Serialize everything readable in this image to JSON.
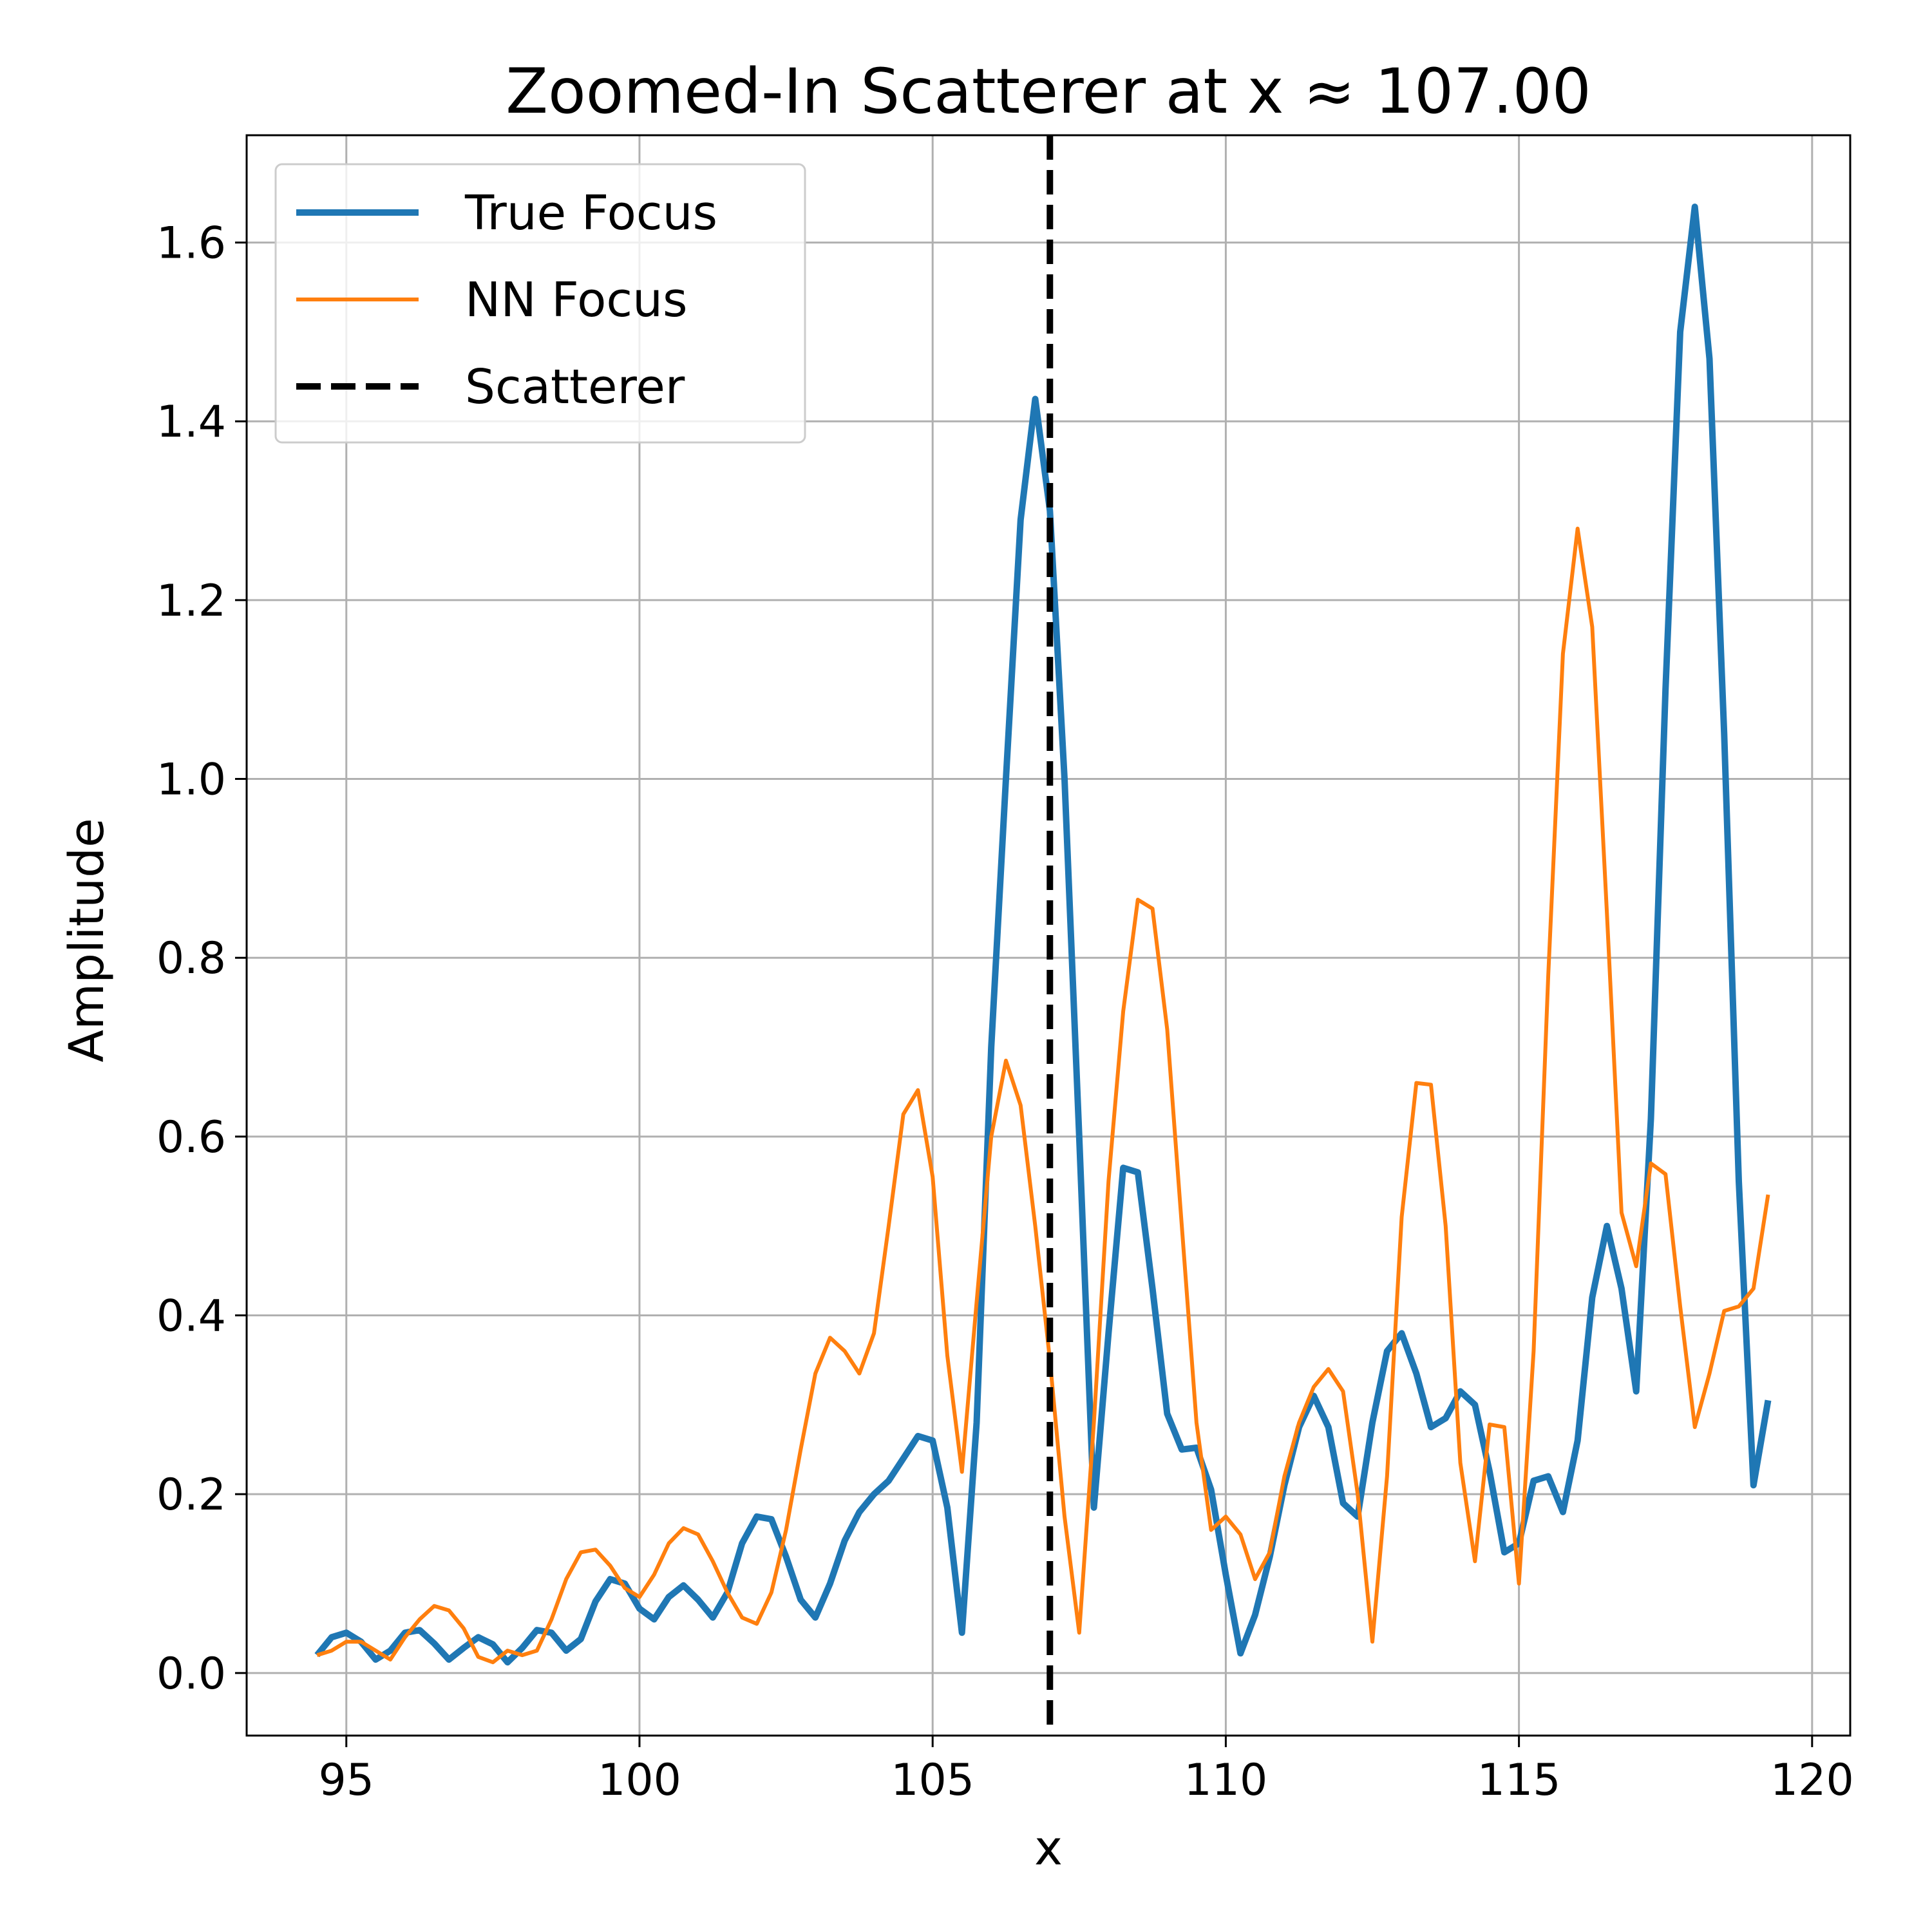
{
  "chart_data": {
    "type": "line",
    "title": "Zoomed-In Scatterer at x ≈ 107.00",
    "xlabel": "x",
    "ylabel": "Amplitude",
    "xlim": [
      93.3,
      120.65
    ],
    "ylim": [
      -0.07,
      1.72
    ],
    "xticks": [
      95,
      100,
      105,
      110,
      115,
      120
    ],
    "yticks": [
      0.0,
      0.2,
      0.4,
      0.6,
      0.8,
      1.0,
      1.2,
      1.4,
      1.6
    ],
    "grid": true,
    "legend_position": "upper-left",
    "vline": {
      "name": "Scatterer",
      "x": 107.0,
      "color": "#000000",
      "style": "dashed"
    },
    "series": [
      {
        "name": "True Focus",
        "color": "#1f77b4",
        "x": [
          94.5,
          94.75,
          95,
          95.25,
          95.5,
          95.75,
          96,
          96.25,
          96.5,
          96.75,
          97,
          97.25,
          97.5,
          97.75,
          98,
          98.25,
          98.5,
          98.75,
          99,
          99.25,
          99.5,
          99.75,
          100,
          100.25,
          100.5,
          100.75,
          101,
          101.25,
          101.5,
          101.75,
          102,
          102.25,
          102.5,
          102.75,
          103,
          103.25,
          103.5,
          103.75,
          104,
          104.25,
          104.5,
          104.75,
          105,
          105.25,
          105.5,
          105.75,
          106,
          106.25,
          106.5,
          106.75,
          107,
          107.25,
          107.5,
          107.75,
          108,
          108.25,
          108.5,
          108.75,
          109,
          109.25,
          109.5,
          109.75,
          110,
          110.25,
          110.5,
          110.75,
          111,
          111.25,
          111.5,
          111.75,
          112,
          112.25,
          112.5,
          112.75,
          113,
          113.25,
          113.5,
          113.75,
          114,
          114.25,
          114.5,
          114.75,
          115,
          115.25,
          115.5,
          115.75,
          116,
          116.25,
          116.5,
          116.75,
          117,
          117.25,
          117.5,
          117.75,
          118,
          118.25,
          118.5,
          118.75,
          119,
          119.25
        ],
        "values": [
          0.02,
          0.04,
          0.045,
          0.035,
          0.015,
          0.025,
          0.045,
          0.048,
          0.033,
          0.015,
          0.028,
          0.04,
          0.032,
          0.012,
          0.028,
          0.048,
          0.045,
          0.025,
          0.038,
          0.08,
          0.105,
          0.1,
          0.072,
          0.06,
          0.085,
          0.098,
          0.082,
          0.062,
          0.09,
          0.145,
          0.175,
          0.172,
          0.13,
          0.082,
          0.062,
          0.1,
          0.148,
          0.18,
          0.2,
          0.215,
          0.24,
          0.265,
          0.26,
          0.185,
          0.045,
          0.28,
          0.7,
          1.0,
          1.29,
          1.425,
          1.3,
          1.0,
          0.6,
          0.185,
          0.38,
          0.565,
          0.56,
          0.43,
          0.29,
          0.25,
          0.252,
          0.205,
          0.11,
          0.022,
          0.065,
          0.13,
          0.21,
          0.275,
          0.31,
          0.275,
          0.19,
          0.175,
          0.28,
          0.36,
          0.38,
          0.335,
          0.275,
          0.285,
          0.315,
          0.3,
          0.225,
          0.135,
          0.145,
          0.215,
          0.22,
          0.18,
          0.26,
          0.42,
          0.5,
          0.43,
          0.315,
          0.62,
          1.1,
          1.5,
          1.64,
          1.47,
          1.05,
          0.55,
          0.21,
          0.305
        ],
        "line_width": 10
      },
      {
        "name": "NN Focus",
        "color": "#ff7f0e",
        "x": [
          94.5,
          94.75,
          95,
          95.25,
          95.5,
          95.75,
          96,
          96.25,
          96.5,
          96.75,
          97,
          97.25,
          97.5,
          97.75,
          98,
          98.25,
          98.5,
          98.75,
          99,
          99.25,
          99.5,
          99.75,
          100,
          100.25,
          100.5,
          100.75,
          101,
          101.25,
          101.5,
          101.75,
          102,
          102.25,
          102.5,
          102.75,
          103,
          103.25,
          103.5,
          103.75,
          104,
          104.25,
          104.5,
          104.75,
          105,
          105.25,
          105.5,
          105.75,
          106,
          106.25,
          106.5,
          106.75,
          107,
          107.25,
          107.5,
          107.75,
          108,
          108.25,
          108.5,
          108.75,
          109,
          109.25,
          109.5,
          109.75,
          110,
          110.25,
          110.5,
          110.75,
          111,
          111.25,
          111.5,
          111.75,
          112,
          112.25,
          112.5,
          112.75,
          113,
          113.25,
          113.5,
          113.75,
          114,
          114.25,
          114.5,
          114.75,
          115,
          115.25,
          115.5,
          115.75,
          116,
          116.25,
          116.5,
          116.75,
          117,
          117.25,
          117.5,
          117.75,
          118,
          118.25,
          118.5,
          118.75,
          119,
          119.25
        ],
        "values": [
          0.02,
          0.025,
          0.035,
          0.035,
          0.025,
          0.015,
          0.04,
          0.06,
          0.075,
          0.07,
          0.05,
          0.018,
          0.012,
          0.025,
          0.02,
          0.025,
          0.06,
          0.105,
          0.135,
          0.138,
          0.12,
          0.095,
          0.085,
          0.11,
          0.145,
          0.162,
          0.155,
          0.125,
          0.09,
          0.062,
          0.055,
          0.09,
          0.16,
          0.25,
          0.335,
          0.375,
          0.36,
          0.335,
          0.38,
          0.5,
          0.625,
          0.652,
          0.555,
          0.355,
          0.225,
          0.415,
          0.6,
          0.685,
          0.635,
          0.5,
          0.35,
          0.175,
          0.045,
          0.28,
          0.55,
          0.74,
          0.865,
          0.855,
          0.72,
          0.5,
          0.28,
          0.16,
          0.175,
          0.155,
          0.105,
          0.135,
          0.22,
          0.28,
          0.32,
          0.34,
          0.315,
          0.2,
          0.035,
          0.22,
          0.51,
          0.66,
          0.658,
          0.5,
          0.235,
          0.125,
          0.278,
          0.275,
          0.1,
          0.36,
          0.78,
          1.14,
          1.28,
          1.17,
          0.85,
          0.515,
          0.455,
          0.57,
          0.558,
          0.41,
          0.275,
          0.335,
          0.405,
          0.41,
          0.43,
          0.535
        ],
        "line_width": 6
      }
    ]
  }
}
